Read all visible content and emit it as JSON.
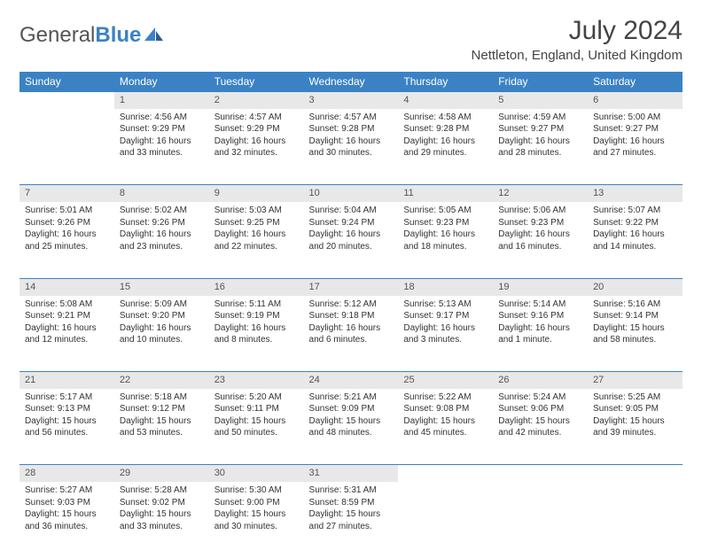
{
  "brand": {
    "part1": "General",
    "part2": "Blue"
  },
  "title": "July 2024",
  "location": "Nettleton, England, United Kingdom",
  "colors": {
    "header_bg": "#3b82c4",
    "header_text": "#ffffff",
    "daynum_bg": "#e8e8e8",
    "border": "#3b82c4",
    "text": "#333333"
  },
  "weekdays": [
    "Sunday",
    "Monday",
    "Tuesday",
    "Wednesday",
    "Thursday",
    "Friday",
    "Saturday"
  ],
  "weeks": [
    {
      "nums": [
        "",
        "1",
        "2",
        "3",
        "4",
        "5",
        "6"
      ],
      "cells": [
        null,
        {
          "sr": "Sunrise: 4:56 AM",
          "ss": "Sunset: 9:29 PM",
          "dl": "Daylight: 16 hours and 33 minutes."
        },
        {
          "sr": "Sunrise: 4:57 AM",
          "ss": "Sunset: 9:29 PM",
          "dl": "Daylight: 16 hours and 32 minutes."
        },
        {
          "sr": "Sunrise: 4:57 AM",
          "ss": "Sunset: 9:28 PM",
          "dl": "Daylight: 16 hours and 30 minutes."
        },
        {
          "sr": "Sunrise: 4:58 AM",
          "ss": "Sunset: 9:28 PM",
          "dl": "Daylight: 16 hours and 29 minutes."
        },
        {
          "sr": "Sunrise: 4:59 AM",
          "ss": "Sunset: 9:27 PM",
          "dl": "Daylight: 16 hours and 28 minutes."
        },
        {
          "sr": "Sunrise: 5:00 AM",
          "ss": "Sunset: 9:27 PM",
          "dl": "Daylight: 16 hours and 27 minutes."
        }
      ]
    },
    {
      "nums": [
        "7",
        "8",
        "9",
        "10",
        "11",
        "12",
        "13"
      ],
      "cells": [
        {
          "sr": "Sunrise: 5:01 AM",
          "ss": "Sunset: 9:26 PM",
          "dl": "Daylight: 16 hours and 25 minutes."
        },
        {
          "sr": "Sunrise: 5:02 AM",
          "ss": "Sunset: 9:26 PM",
          "dl": "Daylight: 16 hours and 23 minutes."
        },
        {
          "sr": "Sunrise: 5:03 AM",
          "ss": "Sunset: 9:25 PM",
          "dl": "Daylight: 16 hours and 22 minutes."
        },
        {
          "sr": "Sunrise: 5:04 AM",
          "ss": "Sunset: 9:24 PM",
          "dl": "Daylight: 16 hours and 20 minutes."
        },
        {
          "sr": "Sunrise: 5:05 AM",
          "ss": "Sunset: 9:23 PM",
          "dl": "Daylight: 16 hours and 18 minutes."
        },
        {
          "sr": "Sunrise: 5:06 AM",
          "ss": "Sunset: 9:23 PM",
          "dl": "Daylight: 16 hours and 16 minutes."
        },
        {
          "sr": "Sunrise: 5:07 AM",
          "ss": "Sunset: 9:22 PM",
          "dl": "Daylight: 16 hours and 14 minutes."
        }
      ]
    },
    {
      "nums": [
        "14",
        "15",
        "16",
        "17",
        "18",
        "19",
        "20"
      ],
      "cells": [
        {
          "sr": "Sunrise: 5:08 AM",
          "ss": "Sunset: 9:21 PM",
          "dl": "Daylight: 16 hours and 12 minutes."
        },
        {
          "sr": "Sunrise: 5:09 AM",
          "ss": "Sunset: 9:20 PM",
          "dl": "Daylight: 16 hours and 10 minutes."
        },
        {
          "sr": "Sunrise: 5:11 AM",
          "ss": "Sunset: 9:19 PM",
          "dl": "Daylight: 16 hours and 8 minutes."
        },
        {
          "sr": "Sunrise: 5:12 AM",
          "ss": "Sunset: 9:18 PM",
          "dl": "Daylight: 16 hours and 6 minutes."
        },
        {
          "sr": "Sunrise: 5:13 AM",
          "ss": "Sunset: 9:17 PM",
          "dl": "Daylight: 16 hours and 3 minutes."
        },
        {
          "sr": "Sunrise: 5:14 AM",
          "ss": "Sunset: 9:16 PM",
          "dl": "Daylight: 16 hours and 1 minute."
        },
        {
          "sr": "Sunrise: 5:16 AM",
          "ss": "Sunset: 9:14 PM",
          "dl": "Daylight: 15 hours and 58 minutes."
        }
      ]
    },
    {
      "nums": [
        "21",
        "22",
        "23",
        "24",
        "25",
        "26",
        "27"
      ],
      "cells": [
        {
          "sr": "Sunrise: 5:17 AM",
          "ss": "Sunset: 9:13 PM",
          "dl": "Daylight: 15 hours and 56 minutes."
        },
        {
          "sr": "Sunrise: 5:18 AM",
          "ss": "Sunset: 9:12 PM",
          "dl": "Daylight: 15 hours and 53 minutes."
        },
        {
          "sr": "Sunrise: 5:20 AM",
          "ss": "Sunset: 9:11 PM",
          "dl": "Daylight: 15 hours and 50 minutes."
        },
        {
          "sr": "Sunrise: 5:21 AM",
          "ss": "Sunset: 9:09 PM",
          "dl": "Daylight: 15 hours and 48 minutes."
        },
        {
          "sr": "Sunrise: 5:22 AM",
          "ss": "Sunset: 9:08 PM",
          "dl": "Daylight: 15 hours and 45 minutes."
        },
        {
          "sr": "Sunrise: 5:24 AM",
          "ss": "Sunset: 9:06 PM",
          "dl": "Daylight: 15 hours and 42 minutes."
        },
        {
          "sr": "Sunrise: 5:25 AM",
          "ss": "Sunset: 9:05 PM",
          "dl": "Daylight: 15 hours and 39 minutes."
        }
      ]
    },
    {
      "nums": [
        "28",
        "29",
        "30",
        "31",
        "",
        "",
        ""
      ],
      "cells": [
        {
          "sr": "Sunrise: 5:27 AM",
          "ss": "Sunset: 9:03 PM",
          "dl": "Daylight: 15 hours and 36 minutes."
        },
        {
          "sr": "Sunrise: 5:28 AM",
          "ss": "Sunset: 9:02 PM",
          "dl": "Daylight: 15 hours and 33 minutes."
        },
        {
          "sr": "Sunrise: 5:30 AM",
          "ss": "Sunset: 9:00 PM",
          "dl": "Daylight: 15 hours and 30 minutes."
        },
        {
          "sr": "Sunrise: 5:31 AM",
          "ss": "Sunset: 8:59 PM",
          "dl": "Daylight: 15 hours and 27 minutes."
        },
        null,
        null,
        null
      ]
    }
  ]
}
